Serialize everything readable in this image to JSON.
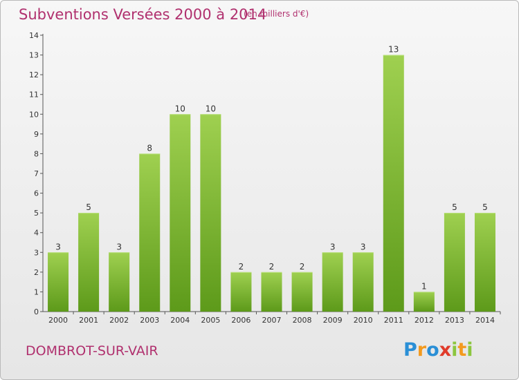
{
  "header": {
    "title": "Subventions Versées 2000 à 2014",
    "unit_note": "(en milliers d'€)"
  },
  "footer": {
    "commune": "DOMBROT-SUR-VAIR",
    "logo_text": "Proxiti",
    "logo_letters": [
      {
        "ch": "P",
        "color": "#2a8fd6"
      },
      {
        "ch": "r",
        "color": "#f39a1f"
      },
      {
        "ch": "o",
        "color": "#2a8fd6"
      },
      {
        "ch": "x",
        "color": "#e03a2a"
      },
      {
        "ch": "i",
        "color": "#8cc63f"
      },
      {
        "ch": "t",
        "color": "#f39a1f"
      },
      {
        "ch": "i",
        "color": "#8cc63f"
      }
    ]
  },
  "chart_data": {
    "type": "bar",
    "title": "Subventions Versées 2000 à 2014",
    "subtitle": "(en milliers d'€)",
    "xlabel": "",
    "ylabel": "",
    "categories": [
      "2000",
      "2001",
      "2002",
      "2003",
      "2004",
      "2005",
      "2006",
      "2007",
      "2008",
      "2009",
      "2010",
      "2011",
      "2012",
      "2013",
      "2014"
    ],
    "values": [
      3,
      5,
      3,
      8,
      10,
      10,
      2,
      2,
      2,
      3,
      3,
      13,
      1,
      5,
      5
    ],
    "ylim": [
      0,
      14
    ],
    "yticks": [
      0,
      1,
      2,
      3,
      4,
      5,
      6,
      7,
      8,
      9,
      10,
      11,
      12,
      13,
      14
    ],
    "grid": false,
    "legend": "none",
    "bar_color_light": "#9fd050",
    "bar_color_dark": "#5d9a1a"
  }
}
